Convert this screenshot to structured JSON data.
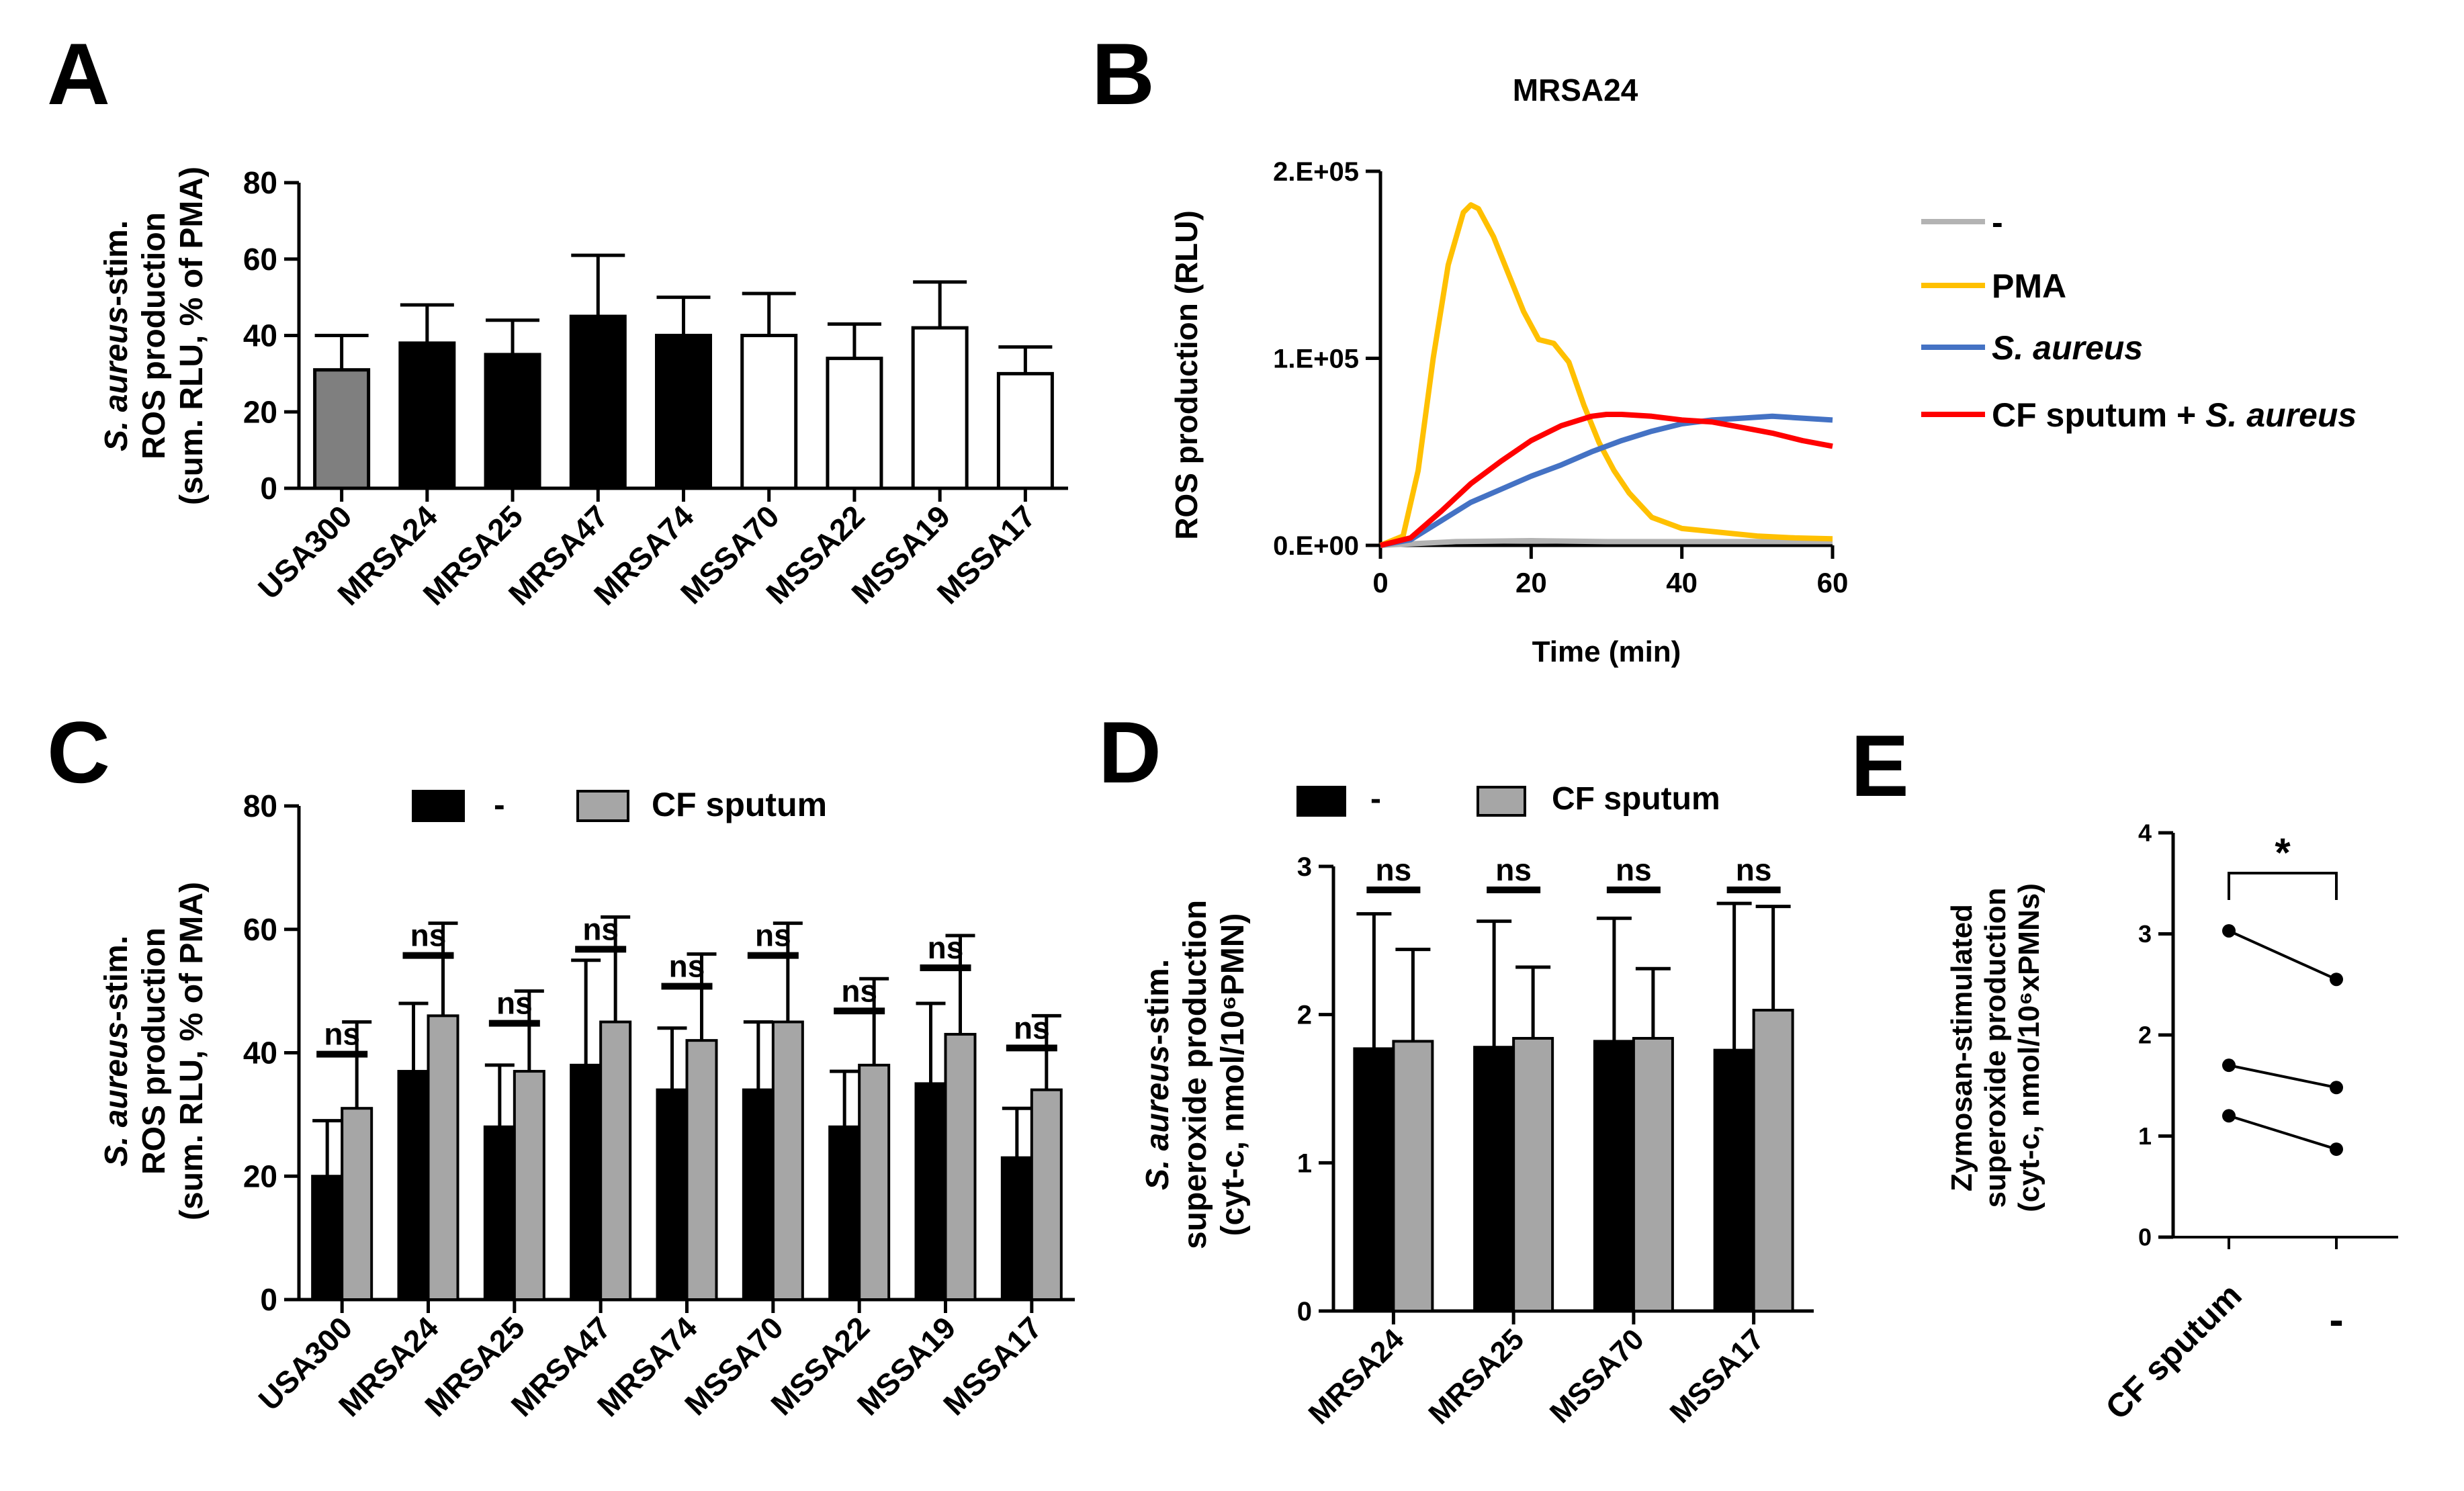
{
  "colors": {
    "black": "#000000",
    "gray_bar": "#7f7f7f",
    "light_gray_bar": "#a6a6a6",
    "white": "#ffffff",
    "line_neg": "#b3b3b3",
    "line_pma": "#ffc000",
    "line_saureus": "#4472c4",
    "line_cf": "#ff0000"
  },
  "chart_data": [
    {
      "panel": "A",
      "type": "bar",
      "title": "",
      "ylabel_line1_italic": "S. aureus",
      "ylabel_line1_rest": "-stim.",
      "ylabel_line2": "ROS production",
      "ylabel_line3": "(sum. RLU, % of PMA)",
      "ylim": [
        0,
        80
      ],
      "yticks": [
        "0",
        "20",
        "40",
        "60",
        "80"
      ],
      "categories": [
        "USA300",
        "MRSA24",
        "MRSA25",
        "MRSA47",
        "MRSA74",
        "MSSA70",
        "MSSA22",
        "MSSA19",
        "MSSA17"
      ],
      "values": [
        31,
        38,
        35,
        45,
        40,
        40,
        34,
        42,
        30
      ],
      "errors": [
        9,
        10,
        9,
        16,
        10,
        11,
        9,
        12,
        7
      ],
      "fill": [
        "gray",
        "black",
        "black",
        "black",
        "black",
        "white",
        "white",
        "white",
        "white"
      ]
    },
    {
      "panel": "B",
      "type": "line",
      "title": "MRSA24",
      "xlabel": "Time (min)",
      "ylabel": "ROS production (RLU)",
      "xlim": [
        0,
        60
      ],
      "ylim": [
        0,
        200000
      ],
      "xticks": [
        "0",
        "20",
        "40",
        "60"
      ],
      "yticks": [
        "0.E+00",
        "1.E+05",
        "2.E+05"
      ],
      "legend": [
        {
          "label": "-",
          "label_italic": ""
        },
        {
          "label": "PMA",
          "label_italic": ""
        },
        {
          "label": "",
          "label_italic": "S. aureus"
        },
        {
          "label": "CF sputum + ",
          "label_italic": "S. aureus"
        }
      ],
      "series": [
        {
          "name": "-",
          "x": [
            0,
            10,
            20,
            30,
            40,
            50,
            60
          ],
          "y": [
            0,
            2000,
            2500,
            2000,
            2000,
            2000,
            2000
          ]
        },
        {
          "name": "PMA",
          "x": [
            0,
            3,
            5,
            7,
            9,
            11,
            12,
            13,
            15,
            17,
            19,
            21,
            23,
            25,
            27,
            29,
            31,
            33,
            36,
            40,
            45,
            50,
            55,
            60
          ],
          "y": [
            0,
            5000,
            40000,
            100000,
            150000,
            178000,
            182000,
            180000,
            165000,
            145000,
            125000,
            110000,
            108000,
            98000,
            75000,
            55000,
            40000,
            28000,
            15000,
            9000,
            7000,
            5000,
            4000,
            3500
          ]
        },
        {
          "name": "S. aureus",
          "x": [
            0,
            4,
            8,
            12,
            16,
            20,
            24,
            28,
            32,
            36,
            40,
            44,
            48,
            52,
            56,
            60
          ],
          "y": [
            0,
            3000,
            13000,
            23000,
            30000,
            37000,
            43000,
            50000,
            56000,
            61000,
            65000,
            67000,
            68000,
            69000,
            68000,
            67000
          ]
        },
        {
          "name": "CF sputum + S. aureus",
          "x": [
            0,
            4,
            8,
            12,
            16,
            20,
            24,
            28,
            30,
            32,
            36,
            40,
            44,
            48,
            52,
            56,
            60
          ],
          "y": [
            0,
            4000,
            18000,
            33000,
            45000,
            56000,
            64000,
            69000,
            70000,
            70000,
            69000,
            67000,
            66000,
            63000,
            60000,
            56000,
            53000
          ]
        }
      ]
    },
    {
      "panel": "C",
      "type": "bar",
      "title": "",
      "ylabel_line1_italic": "S. aureus",
      "ylabel_line1_rest": "-stim.",
      "ylabel_line2": "ROS production",
      "ylabel_line3": "(sum. RLU, % of PMA)",
      "ylim": [
        0,
        80
      ],
      "yticks": [
        "0",
        "20",
        "40",
        "60",
        "80"
      ],
      "legend": [
        "-",
        "CF sputum"
      ],
      "categories": [
        "USA300",
        "MRSA24",
        "MRSA25",
        "MRSA47",
        "MRSA74",
        "MSSA70",
        "MSSA22",
        "MSSA19",
        "MSSA17"
      ],
      "series": [
        {
          "name": "-",
          "values": [
            20,
            37,
            28,
            38,
            34,
            34,
            28,
            35,
            23
          ],
          "errors": [
            9,
            11,
            10,
            17,
            10,
            11,
            9,
            13,
            8
          ]
        },
        {
          "name": "CF sputum",
          "values": [
            31,
            46,
            37,
            45,
            42,
            45,
            38,
            43,
            34
          ],
          "errors": [
            14,
            15,
            13,
            17,
            14,
            16,
            14,
            16,
            12
          ]
        }
      ],
      "annotations": [
        "ns",
        "ns",
        "ns",
        "ns",
        "ns",
        "ns",
        "ns",
        "ns",
        "ns"
      ]
    },
    {
      "panel": "D",
      "type": "bar",
      "title": "",
      "ylabel_line1_italic": "S. aureus",
      "ylabel_line1_rest": "-stim.",
      "ylabel_line2": "superoxide production",
      "ylabel_line3": "(cyt-c, nmol/10⁶PMN)",
      "ylim": [
        0,
        3
      ],
      "yticks": [
        "0",
        "1",
        "2",
        "3"
      ],
      "legend": [
        "-",
        "CF sputum"
      ],
      "categories": [
        "MRSA24",
        "MRSA25",
        "MSSA70",
        "MSSA17"
      ],
      "series": [
        {
          "name": "-",
          "values": [
            1.77,
            1.78,
            1.82,
            1.76
          ],
          "errors": [
            0.91,
            0.85,
            0.83,
            0.99
          ]
        },
        {
          "name": "CF sputum",
          "values": [
            1.82,
            1.84,
            1.84,
            2.03
          ],
          "errors": [
            0.62,
            0.48,
            0.47,
            0.7
          ]
        }
      ],
      "annotations": [
        "ns",
        "ns",
        "ns",
        "ns"
      ]
    },
    {
      "panel": "E",
      "type": "scatter",
      "title": "",
      "ylabel_line1": "Zymosan-stimulated",
      "ylabel_line2": "superoxide production",
      "ylabel_line3": "(cyt-c, nmol/10⁶xPMNs)",
      "ylim": [
        0,
        4
      ],
      "yticks": [
        "0",
        "1",
        "2",
        "3",
        "4"
      ],
      "categories": [
        "CF sputum",
        "-"
      ],
      "pairs": [
        [
          3.03,
          2.55
        ],
        [
          1.7,
          1.48
        ],
        [
          1.2,
          0.87
        ]
      ],
      "annotation": "*"
    }
  ],
  "panel_letters": [
    "A",
    "B",
    "C",
    "D",
    "E"
  ]
}
